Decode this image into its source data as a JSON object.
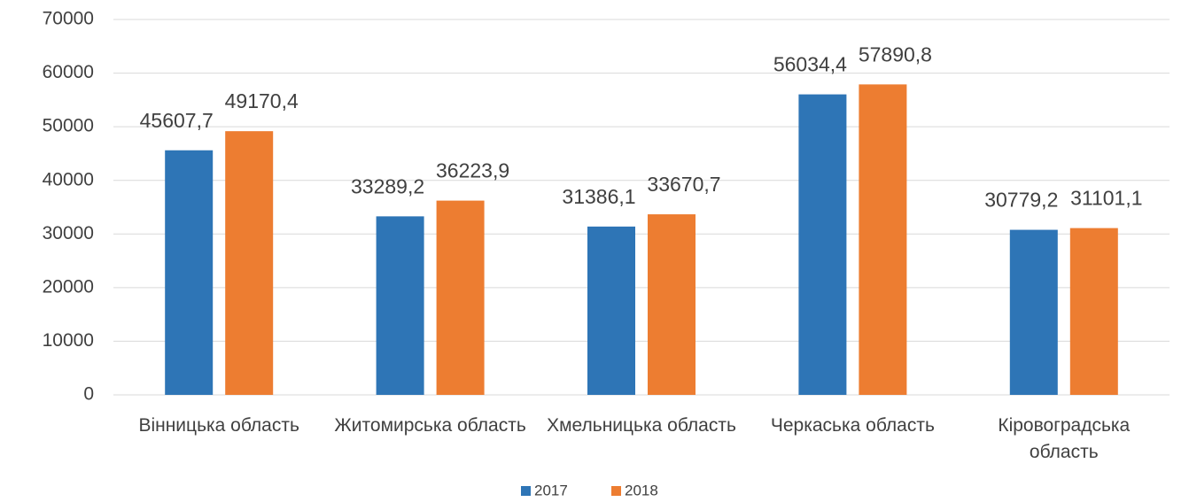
{
  "chart_data": {
    "type": "bar",
    "categories": [
      "Вінницька область",
      "Житомирська область",
      "Хмельницька область",
      "Черкаська область",
      "Кіровоградська область"
    ],
    "series": [
      {
        "name": "2017",
        "color": "#2e75b6",
        "values": [
          45607.7,
          33289.2,
          31386.1,
          56034.4,
          30779.2
        ],
        "value_labels": [
          "45607,7",
          "33289,2",
          "31386,1",
          "56034,4",
          "30779,2"
        ]
      },
      {
        "name": "2018",
        "color": "#ed7d31",
        "values": [
          49170.4,
          36223.9,
          33670.7,
          57890.8,
          31101.1
        ],
        "value_labels": [
          "49170,4",
          "36223,9",
          "33670,7",
          "57890,8",
          "31101,1"
        ]
      }
    ],
    "ylim": [
      0,
      70000
    ],
    "yticks": [
      0,
      10000,
      20000,
      30000,
      40000,
      50000,
      60000,
      70000
    ],
    "grid": true,
    "legend": "bottom"
  }
}
